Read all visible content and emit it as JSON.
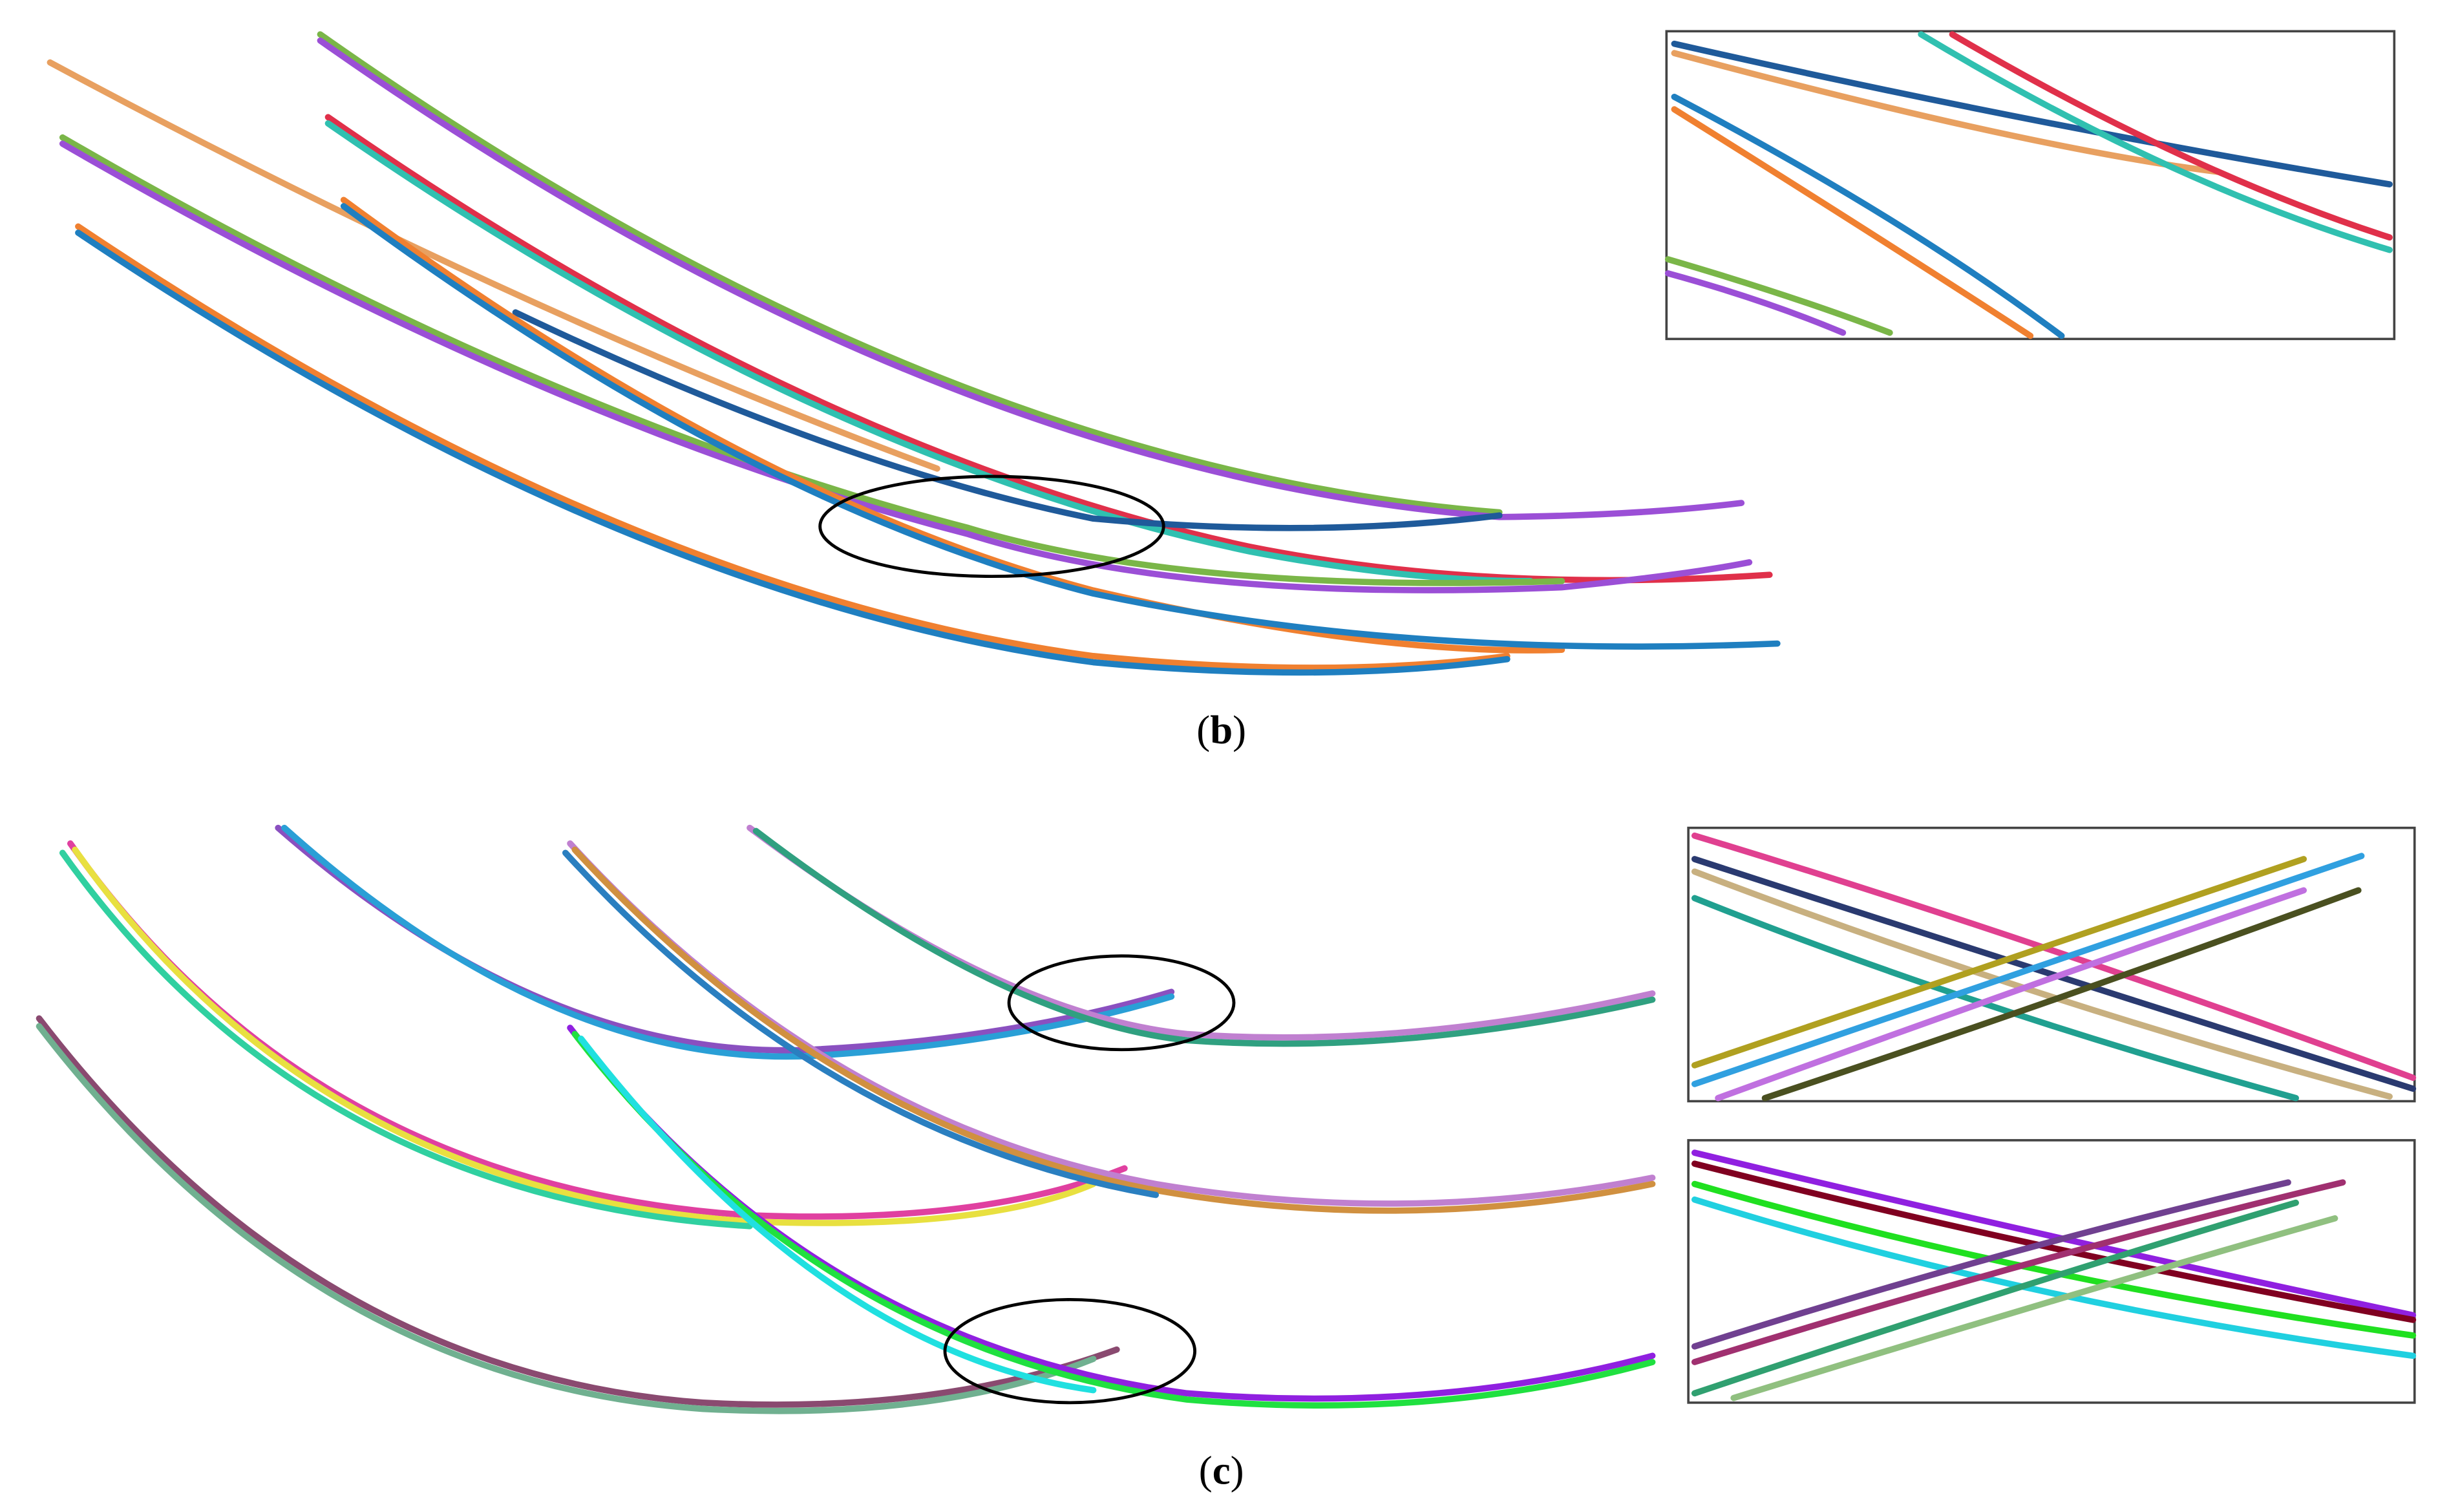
{
  "panels": [
    {
      "label": [
        "(",
        "b",
        ")"
      ]
    },
    {
      "label": [
        "(",
        "c",
        ")"
      ]
    }
  ]
}
